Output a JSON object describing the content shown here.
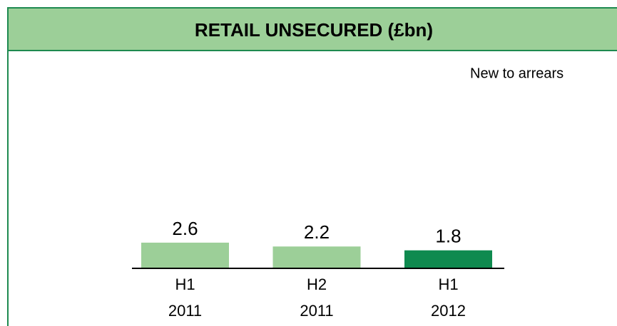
{
  "chart_data": {
    "type": "bar",
    "title": "RETAIL UNSECURED (£bn)",
    "subtitle": "New to arrears",
    "categories": [
      [
        "H1",
        "2011"
      ],
      [
        "H2",
        "2011"
      ],
      [
        "H1",
        "2012"
      ]
    ],
    "values": [
      2.6,
      2.2,
      1.8
    ],
    "colors": [
      "#9ccf98",
      "#9ccf98",
      "#0f8a4f"
    ]
  }
}
